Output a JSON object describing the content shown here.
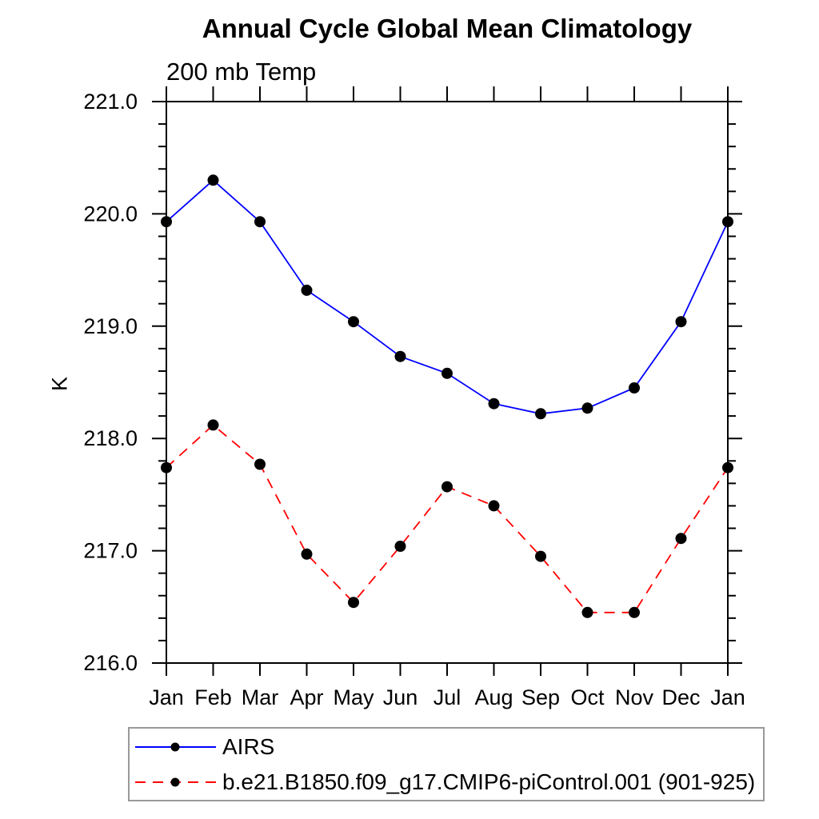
{
  "title": "Annual Cycle Global Mean Climatology",
  "subtitle": "200 mb Temp",
  "y_axis_label": "K",
  "chart_data": {
    "type": "line",
    "categories": [
      "Jan",
      "Feb",
      "Mar",
      "Apr",
      "May",
      "Jun",
      "Jul",
      "Aug",
      "Sep",
      "Oct",
      "Nov",
      "Dec",
      "Jan"
    ],
    "series": [
      {
        "name": "AIRS",
        "line_color": "#0000ff",
        "line_style": "solid",
        "marker": "filled-circle",
        "marker_color": "#000000",
        "values": [
          219.93,
          220.3,
          219.93,
          219.32,
          219.04,
          218.73,
          218.58,
          218.31,
          218.22,
          218.27,
          218.45,
          219.04,
          219.93
        ]
      },
      {
        "name": "b.e21.B1850.f09_g17.CMIP6-piControl.001 (901-925)",
        "line_color": "#ff0000",
        "line_style": "dashed",
        "marker": "filled-circle",
        "marker_color": "#000000",
        "values": [
          217.74,
          218.12,
          217.77,
          216.97,
          216.54,
          217.04,
          217.57,
          217.4,
          216.95,
          216.45,
          216.45,
          217.11,
          217.74
        ]
      }
    ],
    "xlabel": "",
    "ylabel": "K",
    "ylim": [
      216.0,
      221.0
    ],
    "y_major_tick_step": 1.0,
    "y_minor_tick_step": 0.2,
    "y_tick_labels": [
      "216.0",
      "217.0",
      "218.0",
      "219.0",
      "220.0",
      "221.0"
    ],
    "grid": false,
    "legend_position": "below-plot-left",
    "axis_color": "#000000",
    "text_color": "#000000"
  }
}
